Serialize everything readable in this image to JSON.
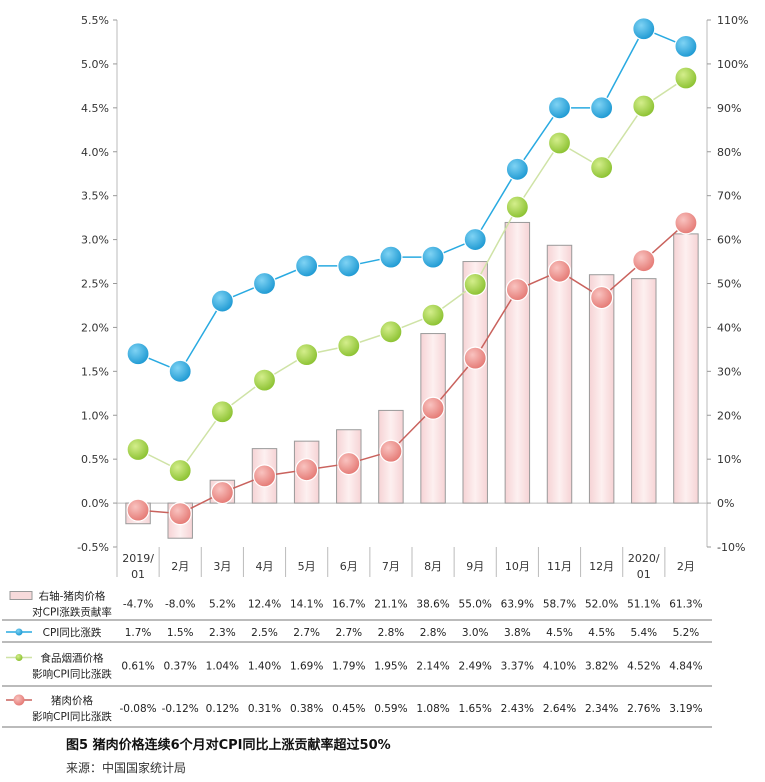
{
  "chart_data": {
    "type": "bar+line",
    "categories": [
      "2019/\n01",
      "2月",
      "3月",
      "4月",
      "5月",
      "6月",
      "7月",
      "8月",
      "9月",
      "10月",
      "11月",
      "12月",
      "2020/\n01",
      "2月"
    ],
    "left_axis": {
      "ylim": [
        -0.5,
        5.5
      ],
      "ticks": [
        "-0.5%",
        "0.0%",
        "0.5%",
        "1.0%",
        "1.5%",
        "2.0%",
        "2.5%",
        "3.0%",
        "3.5%",
        "4.0%",
        "4.5%",
        "5.0%",
        "5.5%"
      ]
    },
    "right_axis": {
      "ylim": [
        -10,
        110
      ],
      "ticks": [
        "-10%",
        "0%",
        "10%",
        "20%",
        "30%",
        "40%",
        "50%",
        "60%",
        "70%",
        "80%",
        "90%",
        "100%",
        "110%"
      ]
    },
    "series": [
      {
        "name": "右轴-猪肉价格对CPI涨跌贡献率",
        "name_lines": [
          "右轴-猪肉价格",
          "对CPI涨跌贡献率"
        ],
        "type": "bar",
        "axis": "right",
        "values": [
          -4.7,
          -8.0,
          5.2,
          12.4,
          14.1,
          16.7,
          21.1,
          38.6,
          55.0,
          63.9,
          58.7,
          52.0,
          51.1,
          61.3
        ],
        "labels": [
          "-4.7%",
          "-8.0%",
          "5.2%",
          "12.4%",
          "14.1%",
          "16.7%",
          "21.1%",
          "38.6%",
          "55.0%",
          "63.9%",
          "58.7%",
          "52.0%",
          "51.1%",
          "61.3%"
        ],
        "color": "#fbe3e4",
        "stroke": "#9a9a9a"
      },
      {
        "name": "CPI同比涨跌",
        "name_lines": [
          "CPI同比涨跌"
        ],
        "type": "line",
        "axis": "left",
        "values": [
          1.7,
          1.5,
          2.3,
          2.5,
          2.7,
          2.7,
          2.8,
          2.8,
          3.0,
          3.8,
          4.5,
          4.5,
          5.4,
          5.2
        ],
        "labels": [
          "1.7%",
          "1.5%",
          "2.3%",
          "2.5%",
          "2.7%",
          "2.7%",
          "2.8%",
          "2.8%",
          "3.0%",
          "3.8%",
          "4.5%",
          "4.5%",
          "5.4%",
          "5.2%"
        ],
        "color": "#29aae1"
      },
      {
        "name": "食品烟酒价格影响CPI同比涨跌",
        "name_lines": [
          "食品烟酒价格",
          "影响CPI同比涨跌"
        ],
        "type": "line",
        "axis": "left",
        "values": [
          0.61,
          0.37,
          1.04,
          1.4,
          1.69,
          1.79,
          1.95,
          2.14,
          2.49,
          3.37,
          4.1,
          3.82,
          4.52,
          4.84
        ],
        "labels": [
          "0.61%",
          "0.37%",
          "1.04%",
          "1.40%",
          "1.69%",
          "1.79%",
          "1.95%",
          "2.14%",
          "2.49%",
          "3.37%",
          "4.10%",
          "3.82%",
          "4.52%",
          "4.84%"
        ],
        "color": "#9ccc3a",
        "line_color": "#cfe3a6"
      },
      {
        "name": "猪肉价格影响CPI同比涨跌",
        "name_lines": [
          "猪肉价格",
          "影响CPI同比涨跌"
        ],
        "type": "line",
        "axis": "left",
        "values": [
          -0.08,
          -0.12,
          0.12,
          0.31,
          0.38,
          0.45,
          0.59,
          1.08,
          1.65,
          2.43,
          2.64,
          2.34,
          2.76,
          3.19
        ],
        "labels": [
          "-0.08%",
          "-0.12%",
          "0.12%",
          "0.31%",
          "0.38%",
          "0.45%",
          "0.59%",
          "1.08%",
          "1.65%",
          "2.43%",
          "2.64%",
          "2.34%",
          "2.76%",
          "3.19%"
        ],
        "color": "#ef8c88",
        "line_color": "#c9625d"
      }
    ],
    "legend": "data-table-bottom",
    "grid": false
  },
  "caption": "图5  猪肉价格连续6个月对CPI同比上涨贡献率超过50%",
  "source": "来源：中国国家统计局"
}
